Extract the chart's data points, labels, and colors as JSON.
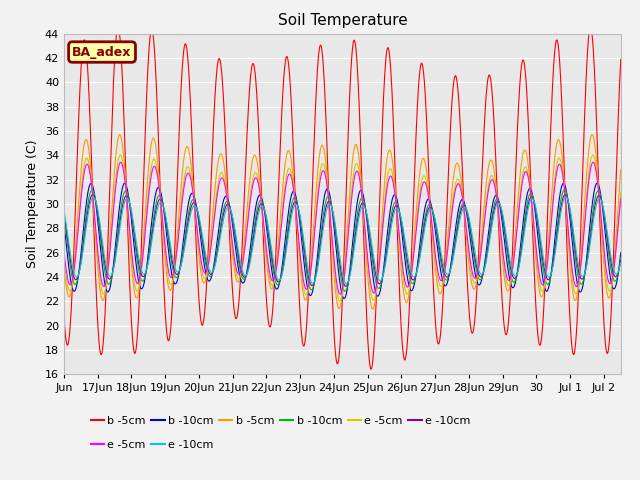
{
  "title": "Soil Temperature",
  "ylabel": "Soil Temperature (C)",
  "ylim": [
    16,
    44
  ],
  "yticks": [
    16,
    18,
    20,
    22,
    24,
    26,
    28,
    30,
    32,
    34,
    36,
    38,
    40,
    42,
    44
  ],
  "annotation_text": "BA_adex",
  "annotation_bg": "#FFFFAA",
  "annotation_border": "#880000",
  "plot_bg": "#E8E8E8",
  "fig_bg": "#F2F2F2",
  "series": [
    {
      "label": "b -5cm",
      "color": "#FF0000",
      "amp": 12.0,
      "mean": 30.5,
      "phase": 0.35,
      "amp_env_amp": 1.5,
      "amp_env_period": 7.0,
      "amp_env_phase": 0.0,
      "mean_env_amp": 0.8,
      "mean_env_period": 14.0,
      "mean_env_phase": 0.0
    },
    {
      "label": "b -10cm",
      "color": "#0000DD",
      "amp": 4.0,
      "mean": 27.0,
      "phase": 0.55,
      "amp_env_amp": 0.5,
      "amp_env_period": 7.0,
      "amp_env_phase": 0.5,
      "mean_env_amp": 0.3,
      "mean_env_period": 14.0,
      "mean_env_phase": 0.5
    },
    {
      "label": "b -5cm",
      "color": "#FF9900",
      "amp": 6.0,
      "mean": 28.5,
      "phase": 0.4,
      "amp_env_amp": 0.8,
      "amp_env_period": 7.0,
      "amp_env_phase": 0.2,
      "mean_env_amp": 0.5,
      "mean_env_period": 14.0,
      "mean_env_phase": 0.2
    },
    {
      "label": "b -10cm",
      "color": "#00BB00",
      "amp": 3.5,
      "mean": 27.0,
      "phase": 0.58,
      "amp_env_amp": 0.4,
      "amp_env_period": 7.0,
      "amp_env_phase": 0.7,
      "mean_env_amp": 0.3,
      "mean_env_period": 14.0,
      "mean_env_phase": 0.7
    },
    {
      "label": "e -5cm",
      "color": "#CCCC00",
      "amp": 5.0,
      "mean": 28.0,
      "phase": 0.42,
      "amp_env_amp": 0.7,
      "amp_env_period": 7.0,
      "amp_env_phase": 0.3,
      "mean_env_amp": 0.4,
      "mean_env_period": 14.0,
      "mean_env_phase": 0.3
    },
    {
      "label": "e -10cm",
      "color": "#880099",
      "amp": 3.2,
      "mean": 27.0,
      "phase": 0.6,
      "amp_env_amp": 0.3,
      "amp_env_period": 7.0,
      "amp_env_phase": 0.8,
      "mean_env_amp": 0.3,
      "mean_env_period": 14.0,
      "mean_env_phase": 0.8
    },
    {
      "label": "e -5cm",
      "color": "#FF00FF",
      "amp": 4.5,
      "mean": 28.0,
      "phase": 0.43,
      "amp_env_amp": 0.6,
      "amp_env_period": 7.0,
      "amp_env_phase": 0.4,
      "mean_env_amp": 0.4,
      "mean_env_period": 14.0,
      "mean_env_phase": 0.4
    },
    {
      "label": "e -10cm",
      "color": "#00CCCC",
      "amp": 3.0,
      "mean": 27.0,
      "phase": 0.62,
      "amp_env_amp": 0.3,
      "amp_env_period": 7.0,
      "amp_env_phase": 0.9,
      "mean_env_amp": 0.3,
      "mean_env_period": 14.0,
      "mean_env_phase": 0.9
    }
  ],
  "xtick_labels": [
    "Jun",
    "17Jun",
    "18Jun",
    "19Jun",
    "20Jun",
    "21Jun",
    "22Jun",
    "23Jun",
    "24Jun",
    "25Jun",
    "26Jun",
    "27Jun",
    "28Jun",
    "29Jun",
    "30",
    "Jul 1",
    "Jul 2"
  ],
  "xtick_positions": [
    0,
    1,
    2,
    3,
    4,
    5,
    6,
    7,
    8,
    9,
    10,
    11,
    12,
    13,
    14,
    15,
    16
  ],
  "n_days": 16.5,
  "samples_per_day": 144
}
